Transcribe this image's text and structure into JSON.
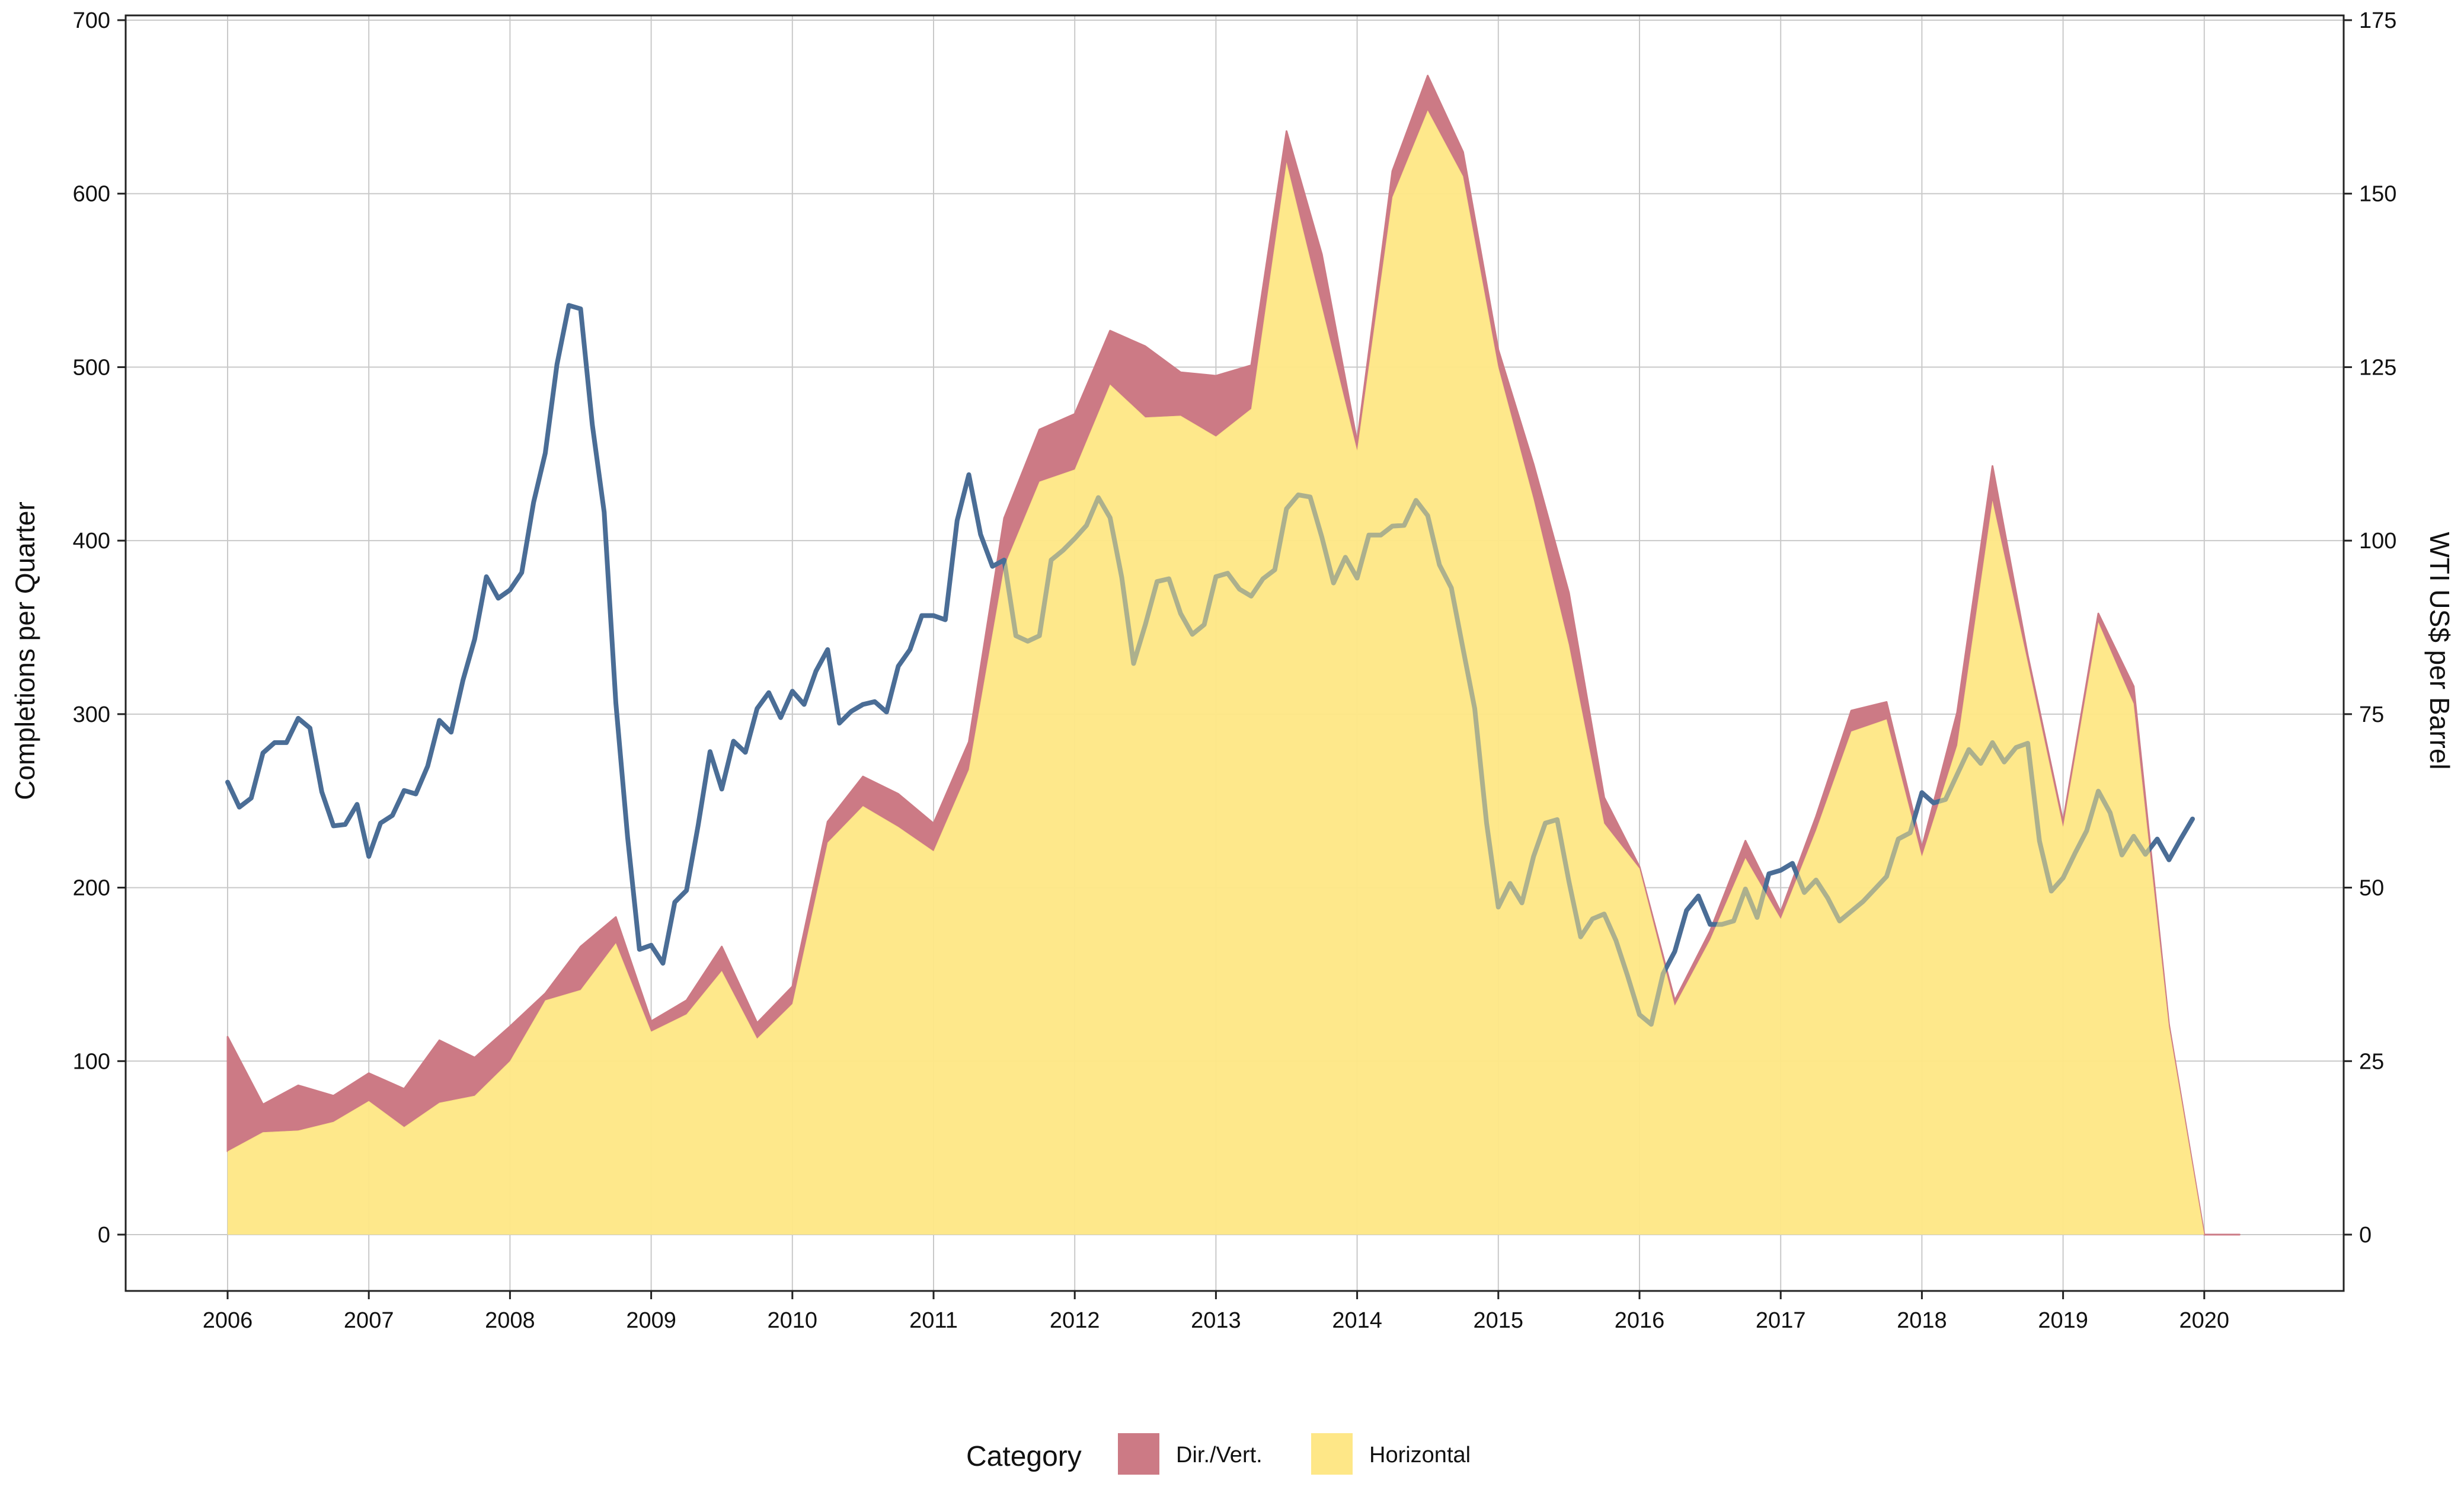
{
  "chart_data": {
    "type": "area",
    "ylabel": "Completions per Quarter",
    "y2label": "WTI US$ per Barrel",
    "ylim": [
      0,
      700
    ],
    "y2lim": [
      0,
      175
    ],
    "xlim": [
      2006,
      2020.5
    ],
    "xticks": [
      "2006",
      "2007",
      "2008",
      "2009",
      "2010",
      "2011",
      "2012",
      "2013",
      "2014",
      "2015",
      "2016",
      "2017",
      "2018",
      "2019",
      "2020"
    ],
    "yticks": [
      "0",
      "100",
      "200",
      "300",
      "400",
      "500",
      "600",
      "700"
    ],
    "y2ticks": [
      "0",
      "25",
      "50",
      "75",
      "100",
      "125",
      "150",
      "175"
    ],
    "grid": true,
    "legend": {
      "title": "Category",
      "position": "bottom",
      "items": [
        {
          "label": "Dir./Vert.",
          "color": "#cc7a85"
        },
        {
          "label": "Horizontal",
          "color": "#fee787"
        }
      ]
    },
    "x_quarters": [
      2006.0,
      2006.25,
      2006.5,
      2006.75,
      2007.0,
      2007.25,
      2007.5,
      2007.75,
      2008.0,
      2008.25,
      2008.5,
      2008.75,
      2009.0,
      2009.25,
      2009.5,
      2009.75,
      2010.0,
      2010.25,
      2010.5,
      2010.75,
      2011.0,
      2011.25,
      2011.5,
      2011.75,
      2012.0,
      2012.25,
      2012.5,
      2012.75,
      2013.0,
      2013.25,
      2013.5,
      2013.75,
      2014.0,
      2014.25,
      2014.5,
      2014.75,
      2015.0,
      2015.25,
      2015.5,
      2015.75,
      2016.0,
      2016.25,
      2016.5,
      2016.75,
      2017.0,
      2017.25,
      2017.5,
      2017.75,
      2018.0,
      2018.25,
      2018.5,
      2018.75,
      2019.0,
      2019.25,
      2019.5,
      2019.75,
      2020.0,
      2020.25
    ],
    "series": [
      {
        "name": "Horizontal",
        "color": "#fee787",
        "values": [
          48,
          59,
          60,
          65,
          77,
          62,
          76,
          80,
          100,
          135,
          141,
          168,
          117,
          127,
          152,
          113,
          133,
          226,
          247,
          235,
          221,
          268,
          385,
          434,
          441,
          490,
          471,
          472,
          460,
          476,
          618,
          535,
          452,
          598,
          648,
          610,
          500,
          424,
          340,
          237,
          211,
          132,
          170,
          217,
          182,
          233,
          290,
          297,
          218,
          282,
          423,
          330,
          235,
          353,
          306,
          120,
          0,
          0
        ]
      },
      {
        "name": "Dir./Vert.",
        "color": "#cc7a85",
        "values": [
          66,
          16,
          26,
          15,
          16,
          22,
          36,
          22,
          20,
          4,
          25,
          15,
          6,
          8,
          14,
          9,
          10,
          12,
          17,
          19,
          16,
          16,
          28,
          30,
          32,
          31,
          41,
          25,
          35,
          25,
          18,
          30,
          5,
          15,
          20,
          14,
          10,
          20,
          30,
          15,
          1,
          3,
          5,
          10,
          4,
          8,
          12,
          10,
          5,
          19,
          20,
          4,
          3,
          5,
          10,
          1,
          0,
          0
        ]
      }
    ],
    "price_series": {
      "name": "WTI",
      "color": "#4a6d96",
      "x": [
        2006.0,
        2006.083,
        2006.167,
        2006.25,
        2006.333,
        2006.417,
        2006.5,
        2006.583,
        2006.667,
        2006.75,
        2006.833,
        2006.917,
        2007.0,
        2007.083,
        2007.167,
        2007.25,
        2007.333,
        2007.417,
        2007.5,
        2007.583,
        2007.667,
        2007.75,
        2007.833,
        2007.917,
        2008.0,
        2008.083,
        2008.167,
        2008.25,
        2008.333,
        2008.417,
        2008.5,
        2008.583,
        2008.667,
        2008.75,
        2008.833,
        2008.917,
        2009.0,
        2009.083,
        2009.167,
        2009.25,
        2009.333,
        2009.417,
        2009.5,
        2009.583,
        2009.667,
        2009.75,
        2009.833,
        2009.917,
        2010.0,
        2010.083,
        2010.167,
        2010.25,
        2010.333,
        2010.417,
        2010.5,
        2010.583,
        2010.667,
        2010.75,
        2010.833,
        2010.917,
        2011.0,
        2011.083,
        2011.167,
        2011.25,
        2011.333,
        2011.417,
        2011.5,
        2011.583,
        2011.667,
        2011.75,
        2011.833,
        2011.917,
        2012.0,
        2012.083,
        2012.167,
        2012.25,
        2012.333,
        2012.417,
        2012.5,
        2012.583,
        2012.667,
        2012.75,
        2012.833,
        2012.917,
        2013.0,
        2013.083,
        2013.167,
        2013.25,
        2013.333,
        2013.417,
        2013.5,
        2013.583,
        2013.667,
        2013.75,
        2013.833,
        2013.917,
        2014.0,
        2014.083,
        2014.167,
        2014.25,
        2014.333,
        2014.417,
        2014.5,
        2014.583,
        2014.667,
        2014.75,
        2014.833,
        2014.917,
        2015.0,
        2015.083,
        2015.167,
        2015.25,
        2015.333,
        2015.417,
        2015.5,
        2015.583,
        2015.667,
        2015.75,
        2015.833,
        2015.917,
        2016.0,
        2016.083,
        2016.167,
        2016.25,
        2016.333,
        2016.417,
        2016.5,
        2016.583,
        2016.667,
        2016.75,
        2016.833,
        2016.917,
        2017.0,
        2017.083,
        2017.167,
        2017.25,
        2017.333,
        2017.417,
        2017.5,
        2017.583,
        2017.667,
        2017.75,
        2017.833,
        2017.917,
        2018.0,
        2018.083,
        2018.167,
        2018.25,
        2018.333,
        2018.417,
        2018.5,
        2018.583,
        2018.667,
        2018.75,
        2018.833,
        2018.917,
        2019.0,
        2019.083,
        2019.167,
        2019.25,
        2019.333,
        2019.417,
        2019.5,
        2019.583,
        2019.667,
        2019.75,
        2019.833,
        2019.917
      ],
      "values": [
        65.2,
        61.6,
        62.9,
        69.4,
        70.9,
        70.9,
        74.4,
        73.0,
        63.8,
        58.9,
        59.1,
        62.0,
        54.5,
        59.3,
        60.4,
        64.0,
        63.5,
        67.5,
        74.1,
        72.4,
        79.9,
        85.8,
        94.8,
        91.7,
        92.9,
        95.4,
        105.5,
        112.6,
        125.4,
        133.9,
        133.4,
        116.7,
        104.1,
        76.6,
        57.3,
        41.1,
        41.7,
        39.1,
        47.9,
        49.6,
        59.0,
        69.6,
        64.2,
        71.1,
        69.5,
        75.8,
        78.1,
        74.5,
        78.3,
        76.4,
        81.2,
        84.3,
        73.7,
        75.4,
        76.4,
        76.8,
        75.3,
        81.9,
        84.3,
        89.2,
        89.2,
        88.6,
        102.9,
        109.5,
        100.9,
        96.3,
        97.2,
        86.3,
        85.5,
        86.3,
        97.2,
        98.6,
        100.3,
        102.2,
        106.2,
        103.3,
        94.7,
        82.3,
        87.9,
        94.1,
        94.5,
        89.5,
        86.5,
        87.9,
        94.8,
        95.3,
        93.0,
        92.0,
        94.5,
        95.8,
        104.6,
        106.6,
        106.3,
        100.5,
        93.9,
        97.6,
        94.6,
        100.8,
        100.8,
        102.1,
        102.2,
        105.8,
        103.6,
        96.5,
        93.2,
        84.4,
        75.8,
        59.3,
        47.2,
        50.6,
        47.8,
        54.5,
        59.3,
        59.8,
        50.9,
        42.9,
        45.5,
        46.2,
        42.4,
        37.2,
        31.7,
        30.3,
        37.6,
        40.8,
        46.7,
        48.8,
        44.7,
        44.7,
        45.2,
        49.8,
        45.7,
        52.0,
        52.5,
        53.5,
        49.3,
        51.1,
        48.5,
        45.2,
        46.6,
        48.0,
        49.8,
        51.6,
        57.0,
        57.9,
        63.7,
        62.2,
        62.7,
        66.3,
        69.9,
        67.9,
        70.9,
        68.1,
        70.2,
        70.8,
        56.7,
        49.5,
        51.4,
        54.9,
        58.2,
        63.9,
        60.8,
        54.7,
        57.4,
        54.8,
        57.0,
        54.0,
        57.0,
        59.9
      ]
    }
  }
}
